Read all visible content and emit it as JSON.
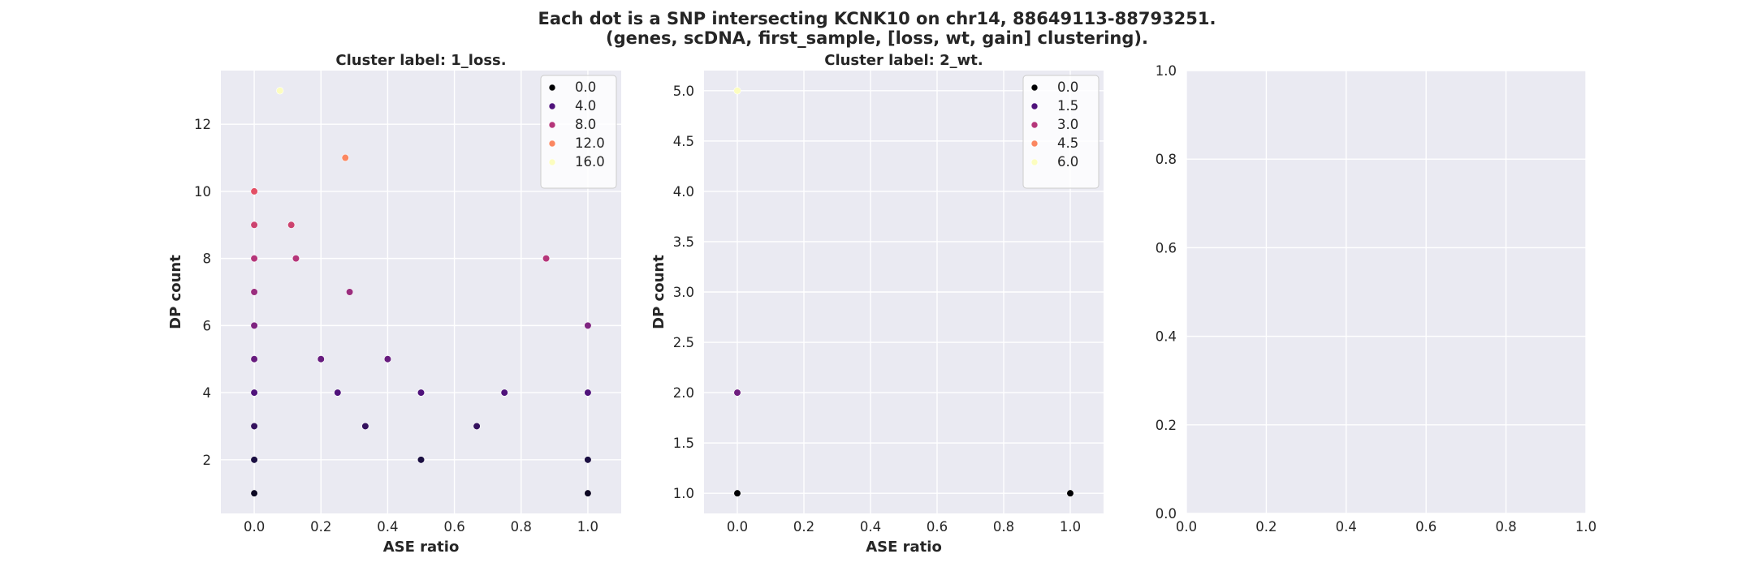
{
  "figure": {
    "suptitle_line1": "Each dot is a SNP intersecting KCNK10 on chr14, 88649113-88793251.",
    "suptitle_line2": "(genes, scDNA, first_sample, [loss, wt, gain] clustering)."
  },
  "chart_data": [
    {
      "type": "scatter",
      "title": "Cluster label: 1_loss.",
      "xlabel": "ASE ratio",
      "ylabel": "DP count",
      "xlim": [
        -0.1,
        1.1
      ],
      "ylim": [
        0.4,
        13.6
      ],
      "xticks": [
        0.0,
        0.2,
        0.4,
        0.6,
        0.8,
        1.0
      ],
      "xtick_labels": [
        "0.0",
        "0.2",
        "0.4",
        "0.6",
        "0.8",
        "1.0"
      ],
      "yticks": [
        2,
        4,
        6,
        8,
        10,
        12
      ],
      "ytick_labels": [
        "2",
        "4",
        "6",
        "8",
        "10",
        "12"
      ],
      "grid": true,
      "colormap": "magma",
      "color_range": [
        0,
        16
      ],
      "legend": {
        "placement": "top-right",
        "entries": [
          {
            "label": "0.0",
            "value": 0
          },
          {
            "label": "4.0",
            "value": 4
          },
          {
            "label": "8.0",
            "value": 8
          },
          {
            "label": "12.0",
            "value": 12
          },
          {
            "label": "16.0",
            "value": 16
          }
        ]
      },
      "points": [
        {
          "x": 0.0,
          "y": 1,
          "c": 1
        },
        {
          "x": 0.0,
          "y": 2,
          "c": 2
        },
        {
          "x": 0.0,
          "y": 3,
          "c": 3
        },
        {
          "x": 0.0,
          "y": 4,
          "c": 4
        },
        {
          "x": 0.0,
          "y": 5,
          "c": 5
        },
        {
          "x": 0.0,
          "y": 6,
          "c": 6
        },
        {
          "x": 0.0,
          "y": 7,
          "c": 7
        },
        {
          "x": 0.0,
          "y": 8,
          "c": 8
        },
        {
          "x": 0.0,
          "y": 9,
          "c": 9
        },
        {
          "x": 0.0,
          "y": 10,
          "c": 10
        },
        {
          "x": 0.077,
          "y": 13,
          "c": 16
        },
        {
          "x": 0.111,
          "y": 9,
          "c": 9
        },
        {
          "x": 0.125,
          "y": 8,
          "c": 8
        },
        {
          "x": 0.2,
          "y": 5,
          "c": 5
        },
        {
          "x": 0.25,
          "y": 4,
          "c": 4
        },
        {
          "x": 0.273,
          "y": 11,
          "c": 12
        },
        {
          "x": 0.286,
          "y": 7,
          "c": 7
        },
        {
          "x": 0.333,
          "y": 3,
          "c": 3
        },
        {
          "x": 0.4,
          "y": 5,
          "c": 5
        },
        {
          "x": 0.5,
          "y": 4,
          "c": 4
        },
        {
          "x": 0.5,
          "y": 2,
          "c": 2
        },
        {
          "x": 0.667,
          "y": 3,
          "c": 3
        },
        {
          "x": 0.75,
          "y": 4,
          "c": 4
        },
        {
          "x": 0.875,
          "y": 8,
          "c": 8
        },
        {
          "x": 1.0,
          "y": 6,
          "c": 6
        },
        {
          "x": 1.0,
          "y": 4,
          "c": 4
        },
        {
          "x": 1.0,
          "y": 2,
          "c": 2
        },
        {
          "x": 1.0,
          "y": 1,
          "c": 1
        }
      ]
    },
    {
      "type": "scatter",
      "title": "Cluster label: 2_wt.",
      "xlabel": "ASE ratio",
      "ylabel": "DP count",
      "xlim": [
        -0.1,
        1.1
      ],
      "ylim": [
        0.8,
        5.2
      ],
      "xticks": [
        0.0,
        0.2,
        0.4,
        0.6,
        0.8,
        1.0
      ],
      "xtick_labels": [
        "0.0",
        "0.2",
        "0.4",
        "0.6",
        "0.8",
        "1.0"
      ],
      "yticks": [
        1.0,
        1.5,
        2.0,
        2.5,
        3.0,
        3.5,
        4.0,
        4.5,
        5.0
      ],
      "ytick_labels": [
        "1.0",
        "1.5",
        "2.0",
        "2.5",
        "3.0",
        "3.5",
        "4.0",
        "4.5",
        "5.0"
      ],
      "grid": true,
      "colormap": "magma",
      "color_range": [
        0,
        6
      ],
      "legend": {
        "placement": "top-right",
        "entries": [
          {
            "label": "0.0",
            "value": 0
          },
          {
            "label": "1.5",
            "value": 1.5
          },
          {
            "label": "3.0",
            "value": 3
          },
          {
            "label": "4.5",
            "value": 4.5
          },
          {
            "label": "6.0",
            "value": 6
          }
        ]
      },
      "points": [
        {
          "x": 0.0,
          "y": 1,
          "c": 0
        },
        {
          "x": 0.0,
          "y": 2,
          "c": 2
        },
        {
          "x": 0.0,
          "y": 5,
          "c": 6
        },
        {
          "x": 1.0,
          "y": 1,
          "c": 0
        }
      ]
    },
    {
      "type": "scatter",
      "title": "",
      "xlabel": "",
      "ylabel": "",
      "xlim": [
        0.0,
        1.0
      ],
      "ylim": [
        0.0,
        1.0
      ],
      "xticks": [
        0.0,
        0.2,
        0.4,
        0.6,
        0.8,
        1.0
      ],
      "xtick_labels": [
        "0.0",
        "0.2",
        "0.4",
        "0.6",
        "0.8",
        "1.0"
      ],
      "yticks": [
        0.0,
        0.2,
        0.4,
        0.6,
        0.8,
        1.0
      ],
      "ytick_labels": [
        "0.0",
        "0.2",
        "0.4",
        "0.6",
        "0.8",
        "1.0"
      ],
      "grid": true,
      "points": []
    }
  ]
}
